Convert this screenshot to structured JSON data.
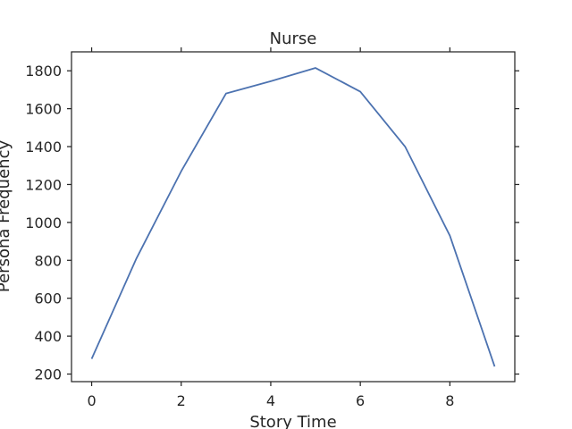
{
  "chart_data": {
    "type": "line",
    "title": "Nurse",
    "xlabel": "Story Time",
    "ylabel": "Persona Frequency",
    "x": [
      0,
      1,
      2,
      3,
      4,
      5,
      6,
      7,
      8,
      9
    ],
    "series": [
      {
        "values": [
          280,
          810,
          1270,
          1680,
          1745,
          1815,
          1690,
          1400,
          930,
          240
        ]
      }
    ],
    "xlim": [
      -0.45,
      9.45
    ],
    "ylim": [
      160,
      1900
    ],
    "xticks": [
      0,
      2,
      4,
      6,
      8
    ],
    "yticks": [
      200,
      400,
      600,
      800,
      1000,
      1200,
      1400,
      1600,
      1800
    ],
    "grid": false,
    "line_color": "#4c72b0",
    "frame_color": "#262626"
  }
}
